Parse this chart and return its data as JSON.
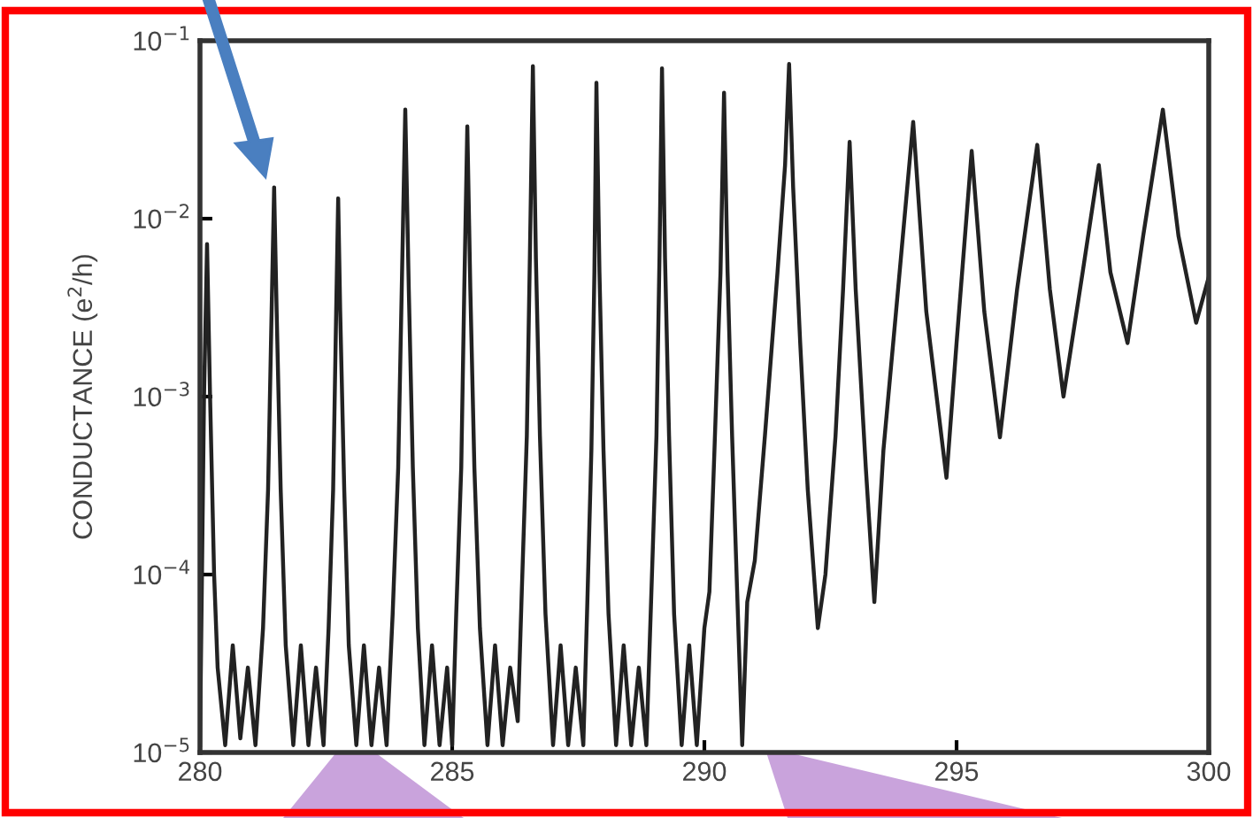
{
  "chart_data": {
    "type": "line",
    "ylabel": "CONDUCTANCE (e$^{2}$/h)",
    "log": "y",
    "grid": false,
    "color": "#222222",
    "x": [
      280.0,
      280.08,
      280.14,
      280.2,
      280.28,
      280.35,
      280.5,
      280.65,
      280.8,
      280.95,
      281.1,
      281.25,
      281.35,
      281.42,
      281.47,
      281.52,
      281.6,
      281.7,
      281.85,
      282.0,
      282.15,
      282.3,
      282.45,
      282.55,
      282.64,
      282.7,
      282.74,
      282.78,
      282.86,
      282.95,
      283.1,
      283.25,
      283.4,
      283.55,
      283.7,
      283.82,
      283.93,
      284.0,
      284.07,
      284.14,
      284.22,
      284.32,
      284.45,
      284.6,
      284.75,
      284.9,
      285.0,
      285.08,
      285.18,
      285.24,
      285.3,
      285.36,
      285.44,
      285.55,
      285.7,
      285.85,
      286.0,
      286.15,
      286.3,
      286.38,
      286.48,
      286.54,
      286.6,
      286.66,
      286.74,
      286.85,
      287.0,
      287.15,
      287.3,
      287.45,
      287.6,
      287.68,
      287.76,
      287.82,
      287.86,
      287.92,
      288.0,
      288.1,
      288.25,
      288.4,
      288.55,
      288.7,
      288.85,
      288.95,
      289.05,
      289.11,
      289.16,
      289.22,
      289.3,
      289.4,
      289.55,
      289.7,
      289.85,
      290.0,
      290.1,
      290.2,
      290.32,
      290.39,
      290.46,
      290.55,
      290.65,
      290.75,
      290.85,
      291.0,
      291.2,
      291.45,
      291.6,
      291.68,
      291.76,
      291.9,
      292.05,
      292.25,
      292.4,
      292.6,
      292.75,
      292.88,
      293.0,
      293.2,
      293.37,
      293.55,
      293.8,
      294.14,
      294.4,
      294.8,
      295.0,
      295.3,
      295.55,
      295.86,
      296.2,
      296.6,
      296.85,
      297.12,
      297.5,
      297.82,
      298.05,
      298.39,
      298.7,
      299.09,
      299.4,
      299.75,
      300.0
    ],
    "values": [
      1.1e-05,
      0.001,
      0.0072,
      0.001,
      0.0001,
      3e-05,
      1.1e-05,
      4e-05,
      1.2e-05,
      3e-05,
      1.1e-05,
      5e-05,
      0.0003,
      0.003,
      0.015,
      0.003,
      0.0003,
      4e-05,
      1.1e-05,
      4e-05,
      1.1e-05,
      3e-05,
      1.1e-05,
      5e-05,
      0.0003,
      0.003,
      0.013,
      0.003,
      0.0003,
      4e-05,
      1.1e-05,
      4e-05,
      1.1e-05,
      3e-05,
      1.1e-05,
      6e-05,
      0.0004,
      0.004,
      0.041,
      0.004,
      0.0004,
      5e-05,
      1.1e-05,
      4e-05,
      1.1e-05,
      3e-05,
      1.1e-05,
      6e-05,
      0.0004,
      0.004,
      0.033,
      0.004,
      0.0004,
      5e-05,
      1.1e-05,
      4e-05,
      1.1e-05,
      3e-05,
      1.5e-05,
      8e-05,
      0.0006,
      0.006,
      0.072,
      0.006,
      0.0006,
      6e-05,
      1.1e-05,
      4e-05,
      1.1e-05,
      3e-05,
      1.1e-05,
      7e-05,
      0.0005,
      0.005,
      0.058,
      0.005,
      0.0005,
      6e-05,
      1.1e-05,
      4e-05,
      1.1e-05,
      3e-05,
      1.1e-05,
      8e-05,
      0.0006,
      0.006,
      0.07,
      0.006,
      0.0006,
      6e-05,
      1.1e-05,
      4e-05,
      1.1e-05,
      5e-05,
      8e-05,
      0.0005,
      0.005,
      0.051,
      0.005,
      0.0006,
      8e-05,
      1.1e-05,
      7e-05,
      0.00012,
      0.0006,
      0.005,
      0.02,
      0.074,
      0.015,
      0.002,
      0.0003,
      5e-05,
      0.0001,
      0.0006,
      0.004,
      0.027,
      0.004,
      0.0004,
      7e-05,
      0.0005,
      0.003,
      0.035,
      0.003,
      0.00035,
      0.002,
      0.024,
      0.003,
      0.00059,
      0.004,
      0.026,
      0.004,
      0.001,
      0.005,
      0.02,
      0.005,
      0.002,
      0.008,
      0.041,
      0.008,
      0.0026,
      0.0047
    ],
    "xlim": [
      280,
      300
    ],
    "ylim": [
      1e-05,
      0.1
    ],
    "xticks": [
      280,
      285,
      290,
      295,
      300
    ],
    "yticks": [
      {
        "value": 1e-05,
        "label": "10$^{−5}$"
      },
      {
        "value": 0.0001,
        "label": "10$^{−4}$"
      },
      {
        "value": 0.001,
        "label": "10$^{−3}$"
      },
      {
        "value": 0.01,
        "label": "10$^{−2}$"
      },
      {
        "value": 0.1,
        "label": "10$^{−1}$"
      }
    ]
  }
}
